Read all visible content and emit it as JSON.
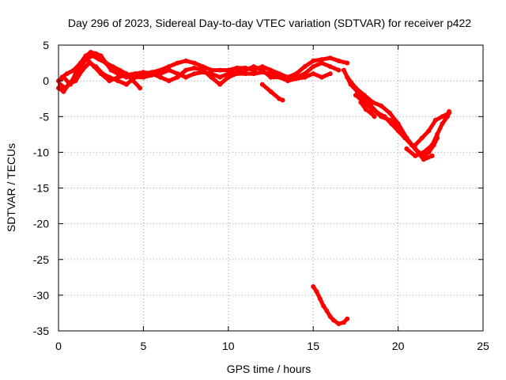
{
  "chart_data": {
    "type": "scatter",
    "title": "Day 296 of 2023, Sidereal Day-to-day VTEC variation (SDTVAR) for receiver p422",
    "xlabel": "GPS time / hours",
    "ylabel": "SDTVAR / TECUs",
    "xlim": [
      0,
      25
    ],
    "ylim": [
      -35,
      5
    ],
    "xticks": [
      0,
      5,
      10,
      15,
      20,
      25
    ],
    "yticks": [
      5,
      0,
      -5,
      -10,
      -15,
      -20,
      -25,
      -30,
      -35
    ],
    "grid": true,
    "legend": "none",
    "series_color": "#ff0000",
    "series": [
      {
        "name": "track-1",
        "x": [
          0.0,
          0.3,
          0.7,
          1.0,
          1.3,
          1.6,
          1.9,
          2.2,
          2.5,
          2.8,
          3.1,
          3.5,
          4.0,
          4.5,
          5.0,
          5.5,
          6.0,
          6.5,
          7.0,
          7.5,
          8.0,
          8.5,
          9.0,
          9.5,
          10.0,
          10.5,
          11.0,
          11.5,
          12.0,
          12.5,
          13.0,
          13.5,
          14.0,
          14.5,
          15.0,
          15.5,
          16.0,
          16.5,
          17.0
        ],
        "y": [
          0.0,
          0.5,
          -0.5,
          1.0,
          2.5,
          3.5,
          4.0,
          3.8,
          3.5,
          2.5,
          1.5,
          1.0,
          0.5,
          1.0,
          1.0,
          1.2,
          1.5,
          2.0,
          2.5,
          2.8,
          2.5,
          2.0,
          1.5,
          1.5,
          1.5,
          1.8,
          1.8,
          1.5,
          2.0,
          1.5,
          1.0,
          0.5,
          1.0,
          2.0,
          2.8,
          3.0,
          3.2,
          2.8,
          2.5
        ]
      },
      {
        "name": "track-2",
        "x": [
          0.0,
          0.3,
          0.6,
          1.0,
          1.4,
          1.8,
          2.2,
          2.6,
          3.0,
          3.5,
          4.0,
          4.5,
          5.0,
          5.5,
          6.0,
          6.5,
          7.0,
          7.5,
          8.0,
          8.5,
          9.0,
          9.5,
          10.0,
          10.5,
          11.0,
          11.5,
          12.0,
          12.5,
          13.0,
          13.5,
          14.0,
          14.5,
          15.0,
          15.5,
          16.0
        ],
        "y": [
          -1.0,
          -1.5,
          -0.5,
          0.0,
          1.5,
          2.5,
          2.0,
          1.0,
          0.5,
          0.0,
          -0.5,
          0.5,
          0.5,
          0.8,
          1.0,
          1.5,
          1.0,
          0.5,
          1.0,
          1.2,
          1.0,
          0.5,
          1.0,
          1.2,
          1.5,
          2.0,
          1.5,
          0.5,
          0.5,
          0.0,
          0.3,
          0.5,
          1.0,
          0.5,
          1.0
        ]
      },
      {
        "name": "track-3",
        "x": [
          0.2,
          0.5,
          0.9,
          1.3,
          1.7,
          2.1,
          2.5,
          3.0,
          3.5,
          4.0,
          4.5,
          5.0,
          5.5,
          6.0,
          6.5,
          7.0,
          7.5,
          8.0,
          8.5,
          9.0,
          9.5,
          10.0,
          10.5,
          11.0,
          11.5,
          12.0,
          12.5,
          13.0,
          13.5,
          14.0,
          14.5,
          15.0,
          15.5,
          16.0,
          16.5
        ],
        "y": [
          0.5,
          1.0,
          1.5,
          2.5,
          3.0,
          2.0,
          1.0,
          0.0,
          0.5,
          0.8,
          1.0,
          1.2,
          1.0,
          0.5,
          0.0,
          0.5,
          1.5,
          1.8,
          1.5,
          0.5,
          -0.5,
          0.5,
          1.0,
          1.0,
          1.0,
          1.2,
          1.0,
          0.8,
          0.5,
          0.5,
          1.0,
          2.0,
          2.5,
          2.0,
          1.5
        ]
      },
      {
        "name": "track-4",
        "x": [
          0.1,
          0.4,
          0.8,
          1.2,
          1.6,
          2.0,
          2.4,
          2.8,
          3.2,
          3.6,
          4.0,
          4.4,
          4.8
        ],
        "y": [
          -0.5,
          -1.0,
          0.0,
          1.5,
          3.0,
          3.5,
          3.0,
          2.5,
          2.0,
          1.5,
          1.0,
          0.0,
          -1.0
        ]
      },
      {
        "name": "track-5",
        "x": [
          12.0,
          12.5,
          13.0,
          13.2
        ],
        "y": [
          -0.5,
          -1.5,
          -2.5,
          -2.7
        ]
      },
      {
        "name": "track-6",
        "x": [
          16.8,
          17.2,
          17.6,
          18.0,
          18.4,
          18.8,
          19.2,
          19.6,
          20.0,
          20.4,
          20.8,
          21.2,
          21.6
        ],
        "y": [
          1.5,
          -0.5,
          -1.5,
          -2.5,
          -3.5,
          -4.5,
          -5.0,
          -6.0,
          -7.0,
          -8.0,
          -9.0,
          -10.0,
          -10.5
        ]
      },
      {
        "name": "track-7",
        "x": [
          17.0,
          17.5,
          18.0,
          18.5,
          19.0,
          19.5,
          20.0,
          20.5,
          21.0,
          21.5,
          22.0
        ],
        "y": [
          0.5,
          -1.0,
          -2.0,
          -3.0,
          -3.5,
          -4.5,
          -6.0,
          -8.0,
          -9.5,
          -11.0,
          -10.5
        ]
      },
      {
        "name": "track-8",
        "x": [
          17.5,
          18.0,
          18.5,
          19.0,
          19.5,
          20.0,
          20.5
        ],
        "y": [
          -2.0,
          -3.0,
          -4.0,
          -5.0,
          -5.5,
          -6.5,
          -8.0
        ]
      },
      {
        "name": "track-9",
        "x": [
          17.8,
          18.1,
          18.4,
          18.6
        ],
        "y": [
          -3.0,
          -4.0,
          -4.5,
          -5.0
        ]
      },
      {
        "name": "track-10",
        "x": [
          20.5,
          21.0,
          21.5,
          22.0,
          22.3,
          22.6,
          22.9,
          23.0
        ],
        "y": [
          -9.5,
          -10.5,
          -10.0,
          -9.0,
          -7.5,
          -6.0,
          -5.0,
          -4.3
        ]
      },
      {
        "name": "track-11",
        "x": [
          21.0,
          21.4,
          21.8,
          22.2,
          22.6,
          23.0
        ],
        "y": [
          -9.0,
          -8.0,
          -7.0,
          -5.5,
          -5.0,
          -4.5
        ]
      },
      {
        "name": "track-12",
        "x": [
          21.5,
          21.8,
          22.1,
          22.3
        ],
        "y": [
          -10.5,
          -10.0,
          -9.0,
          -8.0
        ]
      },
      {
        "name": "track-13",
        "x": [
          15.0,
          15.2,
          15.4,
          15.6,
          15.8,
          16.0,
          16.2,
          16.5,
          16.8,
          17.0
        ],
        "y": [
          -28.8,
          -29.5,
          -30.5,
          -31.5,
          -32.2,
          -33.0,
          -33.5,
          -34.0,
          -33.8,
          -33.3
        ]
      }
    ]
  }
}
